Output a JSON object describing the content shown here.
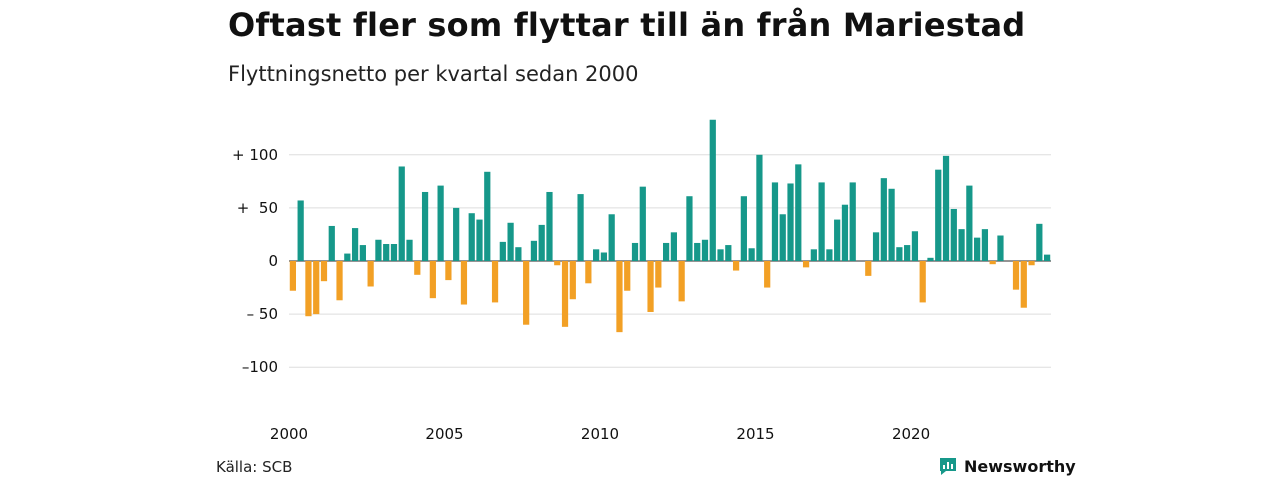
{
  "title": "Oftast fler som flyttar till än från Mariestad",
  "subtitle": "Flyttningsnetto per kvartal sedan 2000",
  "source": "Källa: SCB",
  "brand": "Newsworthy",
  "colors": {
    "positive": "#16988a",
    "negative": "#f2a025",
    "grid": "#dddddd",
    "text": "#111111",
    "brand": "#16988a"
  },
  "chart_data": {
    "type": "bar",
    "xlabel": "",
    "ylabel": "",
    "ylim": [
      -130,
      135
    ],
    "y_ticks": [
      100,
      50,
      0,
      -50,
      -100
    ],
    "y_tick_labels": [
      "+ 100",
      "+  50",
      "0",
      "– 50",
      "–100"
    ],
    "x_tick_labels": [
      "2000",
      "2005",
      "2010",
      "2015",
      "2020"
    ],
    "x_tick_index": [
      0,
      20,
      40,
      60,
      80
    ],
    "grid": true,
    "series": [
      {
        "values": [
          -28,
          57,
          -52,
          -50,
          -19,
          33,
          -37,
          7,
          31,
          15,
          -24,
          20,
          16,
          16,
          89,
          20,
          -13,
          65,
          -35,
          71,
          -18,
          50,
          -41,
          45,
          39,
          84,
          -39,
          18,
          36,
          13,
          -60,
          19,
          34,
          65,
          -4,
          -62,
          -36,
          63,
          -21,
          11,
          8,
          44,
          -67,
          -28,
          17,
          70,
          -48,
          -25,
          17,
          27,
          -38,
          61,
          17,
          20,
          133,
          11,
          15,
          -9,
          61,
          12,
          100,
          -25,
          74,
          44,
          73,
          91,
          -6,
          11,
          74,
          11,
          39,
          53,
          74,
          0,
          -14,
          27,
          78,
          68,
          13,
          15,
          28,
          -39,
          3,
          86,
          99,
          49,
          30,
          71,
          22,
          30,
          -3,
          24,
          0,
          -27,
          -44,
          -4,
          35,
          6
        ]
      }
    ]
  }
}
